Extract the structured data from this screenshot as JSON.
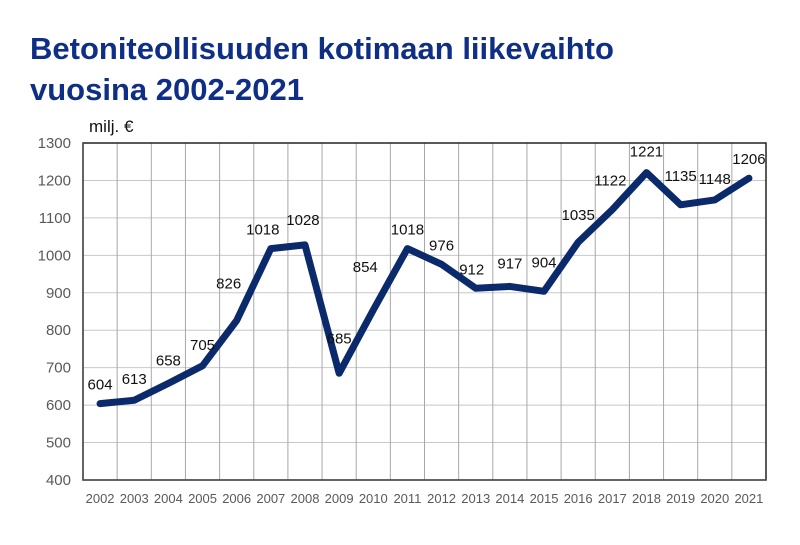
{
  "chart_data": {
    "type": "line",
    "title_lines": [
      "Betoniteollisuuden kotimaan liikevaihto",
      "vuosina 2002-2021"
    ],
    "ylabel": "milj. €",
    "xlabel": "",
    "categories": [
      "2002",
      "2003",
      "2004",
      "2005",
      "2006",
      "2007",
      "2008",
      "2009",
      "2010",
      "2011",
      "2012",
      "2013",
      "2014",
      "2015",
      "2016",
      "2017",
      "2018",
      "2019",
      "2020",
      "2021"
    ],
    "values": [
      604,
      613,
      658,
      705,
      826,
      1018,
      1028,
      685,
      854,
      1018,
      976,
      912,
      917,
      904,
      1035,
      1122,
      1221,
      1135,
      1148,
      1206
    ],
    "ylim": [
      400,
      1300
    ],
    "yticks": [
      400,
      500,
      600,
      700,
      800,
      900,
      1000,
      1100,
      1200,
      1300
    ],
    "grid": true,
    "data_labels": true,
    "legend": "none",
    "line_color": "#0b2a6b"
  }
}
